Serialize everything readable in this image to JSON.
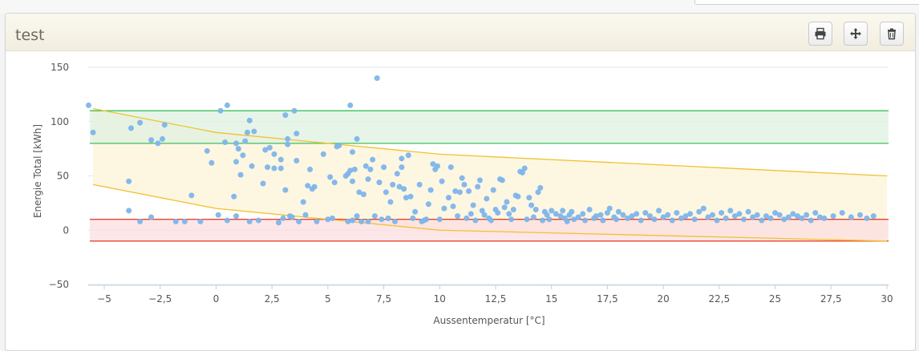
{
  "panel": {
    "title": "test"
  },
  "toolbar": {
    "print_icon": "print-icon",
    "move_icon": "move-icon",
    "delete_icon": "trash-icon"
  },
  "chart_data": {
    "type": "scatter",
    "title": "",
    "xlabel": "Aussentemperatur [°C]",
    "ylabel": "Energie Total [kWh]",
    "xlim": [
      -6,
      30
    ],
    "ylim": [
      -50,
      150
    ],
    "x_ticks": [
      -5,
      -2.5,
      0,
      2.5,
      5,
      7.5,
      10,
      12.5,
      15,
      17.5,
      20,
      22.5,
      25,
      27.5,
      30
    ],
    "x_tick_labels": [
      "−5",
      "−2,5",
      "0",
      "2,5",
      "5",
      "7,5",
      "10",
      "12,5",
      "15",
      "17,5",
      "20",
      "22,5",
      "25",
      "27,5",
      "30"
    ],
    "y_ticks": [
      -50,
      0,
      50,
      100,
      150
    ],
    "y_tick_labels": [
      "−50",
      "0",
      "50",
      "100",
      "150"
    ],
    "grid": "horizontal",
    "colors": {
      "points": "#7cb5ec",
      "green_band_line": "#3fbf5a",
      "green_band_fill": "#dff0e0",
      "red_band_line": "#e8432d",
      "red_band_fill": "#fbdde0",
      "yellow_band_line": "#f2c12e",
      "yellow_band_fill": "#fdf5dd"
    },
    "bands": [
      {
        "kind": "horizontal",
        "color": "green",
        "from": 80,
        "to": 110
      },
      {
        "kind": "horizontal",
        "color": "red",
        "from": -10,
        "to": 10
      },
      {
        "kind": "sloped",
        "color": "yellow",
        "upper": [
          [
            -5.5,
            112
          ],
          [
            0,
            90
          ],
          [
            10,
            70
          ],
          [
            30,
            50
          ]
        ],
        "lower": [
          [
            -5.5,
            42
          ],
          [
            0,
            20
          ],
          [
            10,
            0
          ],
          [
            30,
            -10
          ]
        ]
      }
    ],
    "series": [
      {
        "points": [
          [
            -5.7,
            115
          ],
          [
            -5.5,
            90
          ],
          [
            -3.9,
            45
          ],
          [
            -3.9,
            18
          ],
          [
            -3.8,
            94
          ],
          [
            -3.4,
            99
          ],
          [
            -3.4,
            8
          ],
          [
            -2.9,
            83
          ],
          [
            -2.9,
            12
          ],
          [
            -2.6,
            80
          ],
          [
            -2.4,
            84
          ],
          [
            -2.3,
            97
          ],
          [
            -1.8,
            8
          ],
          [
            -1.4,
            8
          ],
          [
            -1.1,
            32
          ],
          [
            -0.7,
            8
          ],
          [
            -0.4,
            73
          ],
          [
            -0.2,
            62
          ],
          [
            0.1,
            14
          ],
          [
            0.2,
            110
          ],
          [
            0.4,
            81
          ],
          [
            0.5,
            9
          ],
          [
            0.5,
            115
          ],
          [
            0.8,
            31
          ],
          [
            0.9,
            80
          ],
          [
            0.9,
            63
          ],
          [
            0.9,
            13
          ],
          [
            1,
            75
          ],
          [
            1.1,
            51
          ],
          [
            1.2,
            69
          ],
          [
            1.3,
            82
          ],
          [
            1.4,
            90
          ],
          [
            1.5,
            101
          ],
          [
            1.5,
            8
          ],
          [
            1.6,
            59
          ],
          [
            1.7,
            91
          ],
          [
            1.9,
            9
          ],
          [
            2.1,
            43
          ],
          [
            2.2,
            74
          ],
          [
            2.3,
            58
          ],
          [
            2.4,
            76
          ],
          [
            2.6,
            70
          ],
          [
            2.6,
            57
          ],
          [
            2.8,
            7
          ],
          [
            2.9,
            65
          ],
          [
            2.9,
            57
          ],
          [
            3,
            11
          ],
          [
            3.1,
            37
          ],
          [
            3.1,
            106
          ],
          [
            3.2,
            79
          ],
          [
            3.2,
            84
          ],
          [
            3.3,
            13
          ],
          [
            3.4,
            12
          ],
          [
            3.5,
            110
          ],
          [
            3.6,
            64
          ],
          [
            3.6,
            89
          ],
          [
            3.7,
            8
          ],
          [
            3.9,
            26
          ],
          [
            4,
            14
          ],
          [
            4.1,
            41
          ],
          [
            4.2,
            56
          ],
          [
            4.3,
            38
          ],
          [
            4.4,
            40
          ],
          [
            4.5,
            8
          ],
          [
            4.8,
            70
          ],
          [
            5,
            10
          ],
          [
            5.1,
            49
          ],
          [
            5.2,
            11
          ],
          [
            5.3,
            44
          ],
          [
            5.4,
            77
          ],
          [
            5.5,
            78
          ],
          [
            5.8,
            50
          ],
          [
            5.9,
            8
          ],
          [
            5.9,
            52
          ],
          [
            6,
            115
          ],
          [
            6,
            55
          ],
          [
            6.1,
            9
          ],
          [
            6.1,
            72
          ],
          [
            6.1,
            45
          ],
          [
            6.2,
            56
          ],
          [
            6.3,
            84
          ],
          [
            6.3,
            13
          ],
          [
            6.4,
            35
          ],
          [
            6.5,
            8
          ],
          [
            6.6,
            33
          ],
          [
            6.7,
            59
          ],
          [
            6.8,
            8
          ],
          [
            6.8,
            47
          ],
          [
            6.9,
            56
          ],
          [
            7,
            65
          ],
          [
            7.1,
            13
          ],
          [
            7.2,
            140
          ],
          [
            7.3,
            44
          ],
          [
            7.4,
            10
          ],
          [
            7.5,
            58
          ],
          [
            7.6,
            35
          ],
          [
            7.7,
            11
          ],
          [
            7.8,
            26
          ],
          [
            7.9,
            42
          ],
          [
            8,
            8
          ],
          [
            8.1,
            52
          ],
          [
            8.2,
            40
          ],
          [
            8.3,
            66
          ],
          [
            8.3,
            58
          ],
          [
            8.4,
            38
          ],
          [
            8.5,
            30
          ],
          [
            8.6,
            69
          ],
          [
            8.7,
            31
          ],
          [
            8.8,
            11
          ],
          [
            8.9,
            17
          ],
          [
            9.1,
            42
          ],
          [
            9.2,
            8
          ],
          [
            9.3,
            9
          ],
          [
            9.4,
            10
          ],
          [
            9.5,
            24
          ],
          [
            9.6,
            37
          ],
          [
            9.7,
            61
          ],
          [
            9.8,
            56
          ],
          [
            9.9,
            59
          ],
          [
            10,
            10
          ],
          [
            10.1,
            45
          ],
          [
            10.2,
            20
          ],
          [
            10.4,
            30
          ],
          [
            10.5,
            58
          ],
          [
            10.6,
            22
          ],
          [
            10.7,
            36
          ],
          [
            10.8,
            13
          ],
          [
            10.9,
            35
          ],
          [
            11,
            48
          ],
          [
            11.1,
            42
          ],
          [
            11.2,
            11
          ],
          [
            11.3,
            36
          ],
          [
            11.4,
            15
          ],
          [
            11.5,
            23
          ],
          [
            11.6,
            9
          ],
          [
            11.7,
            40
          ],
          [
            11.8,
            46
          ],
          [
            11.9,
            18
          ],
          [
            12,
            14
          ],
          [
            12.1,
            29
          ],
          [
            12.2,
            11
          ],
          [
            12.3,
            9
          ],
          [
            12.4,
            37
          ],
          [
            12.5,
            19
          ],
          [
            12.6,
            16
          ],
          [
            12.7,
            47
          ],
          [
            12.8,
            46
          ],
          [
            12.9,
            21
          ],
          [
            13,
            26
          ],
          [
            13.1,
            15
          ],
          [
            13.2,
            10
          ],
          [
            13.3,
            19
          ],
          [
            13.4,
            32
          ],
          [
            13.5,
            31
          ],
          [
            13.6,
            54
          ],
          [
            13.7,
            53
          ],
          [
            13.8,
            57
          ],
          [
            13.9,
            10
          ],
          [
            14,
            30
          ],
          [
            14.1,
            23
          ],
          [
            14.2,
            12
          ],
          [
            14.3,
            19
          ],
          [
            14.4,
            35
          ],
          [
            14.5,
            39
          ],
          [
            14.6,
            9
          ],
          [
            14.7,
            17
          ],
          [
            14.8,
            14
          ],
          [
            14.9,
            10
          ],
          [
            15,
            18
          ],
          [
            15.2,
            15
          ],
          [
            15.4,
            13
          ],
          [
            15.5,
            18
          ],
          [
            15.6,
            11
          ],
          [
            15.7,
            8
          ],
          [
            15.8,
            14
          ],
          [
            15.9,
            17
          ],
          [
            16,
            10
          ],
          [
            16.2,
            12
          ],
          [
            16.4,
            15
          ],
          [
            16.5,
            9
          ],
          [
            16.7,
            19
          ],
          [
            16.9,
            11
          ],
          [
            17,
            13
          ],
          [
            17.2,
            14
          ],
          [
            17.3,
            9
          ],
          [
            17.5,
            16
          ],
          [
            17.6,
            20
          ],
          [
            17.8,
            12
          ],
          [
            17.9,
            10
          ],
          [
            18,
            17
          ],
          [
            18.2,
            14
          ],
          [
            18.4,
            11
          ],
          [
            18.6,
            13
          ],
          [
            18.8,
            15
          ],
          [
            19,
            9
          ],
          [
            19.2,
            16
          ],
          [
            19.4,
            13
          ],
          [
            19.6,
            10
          ],
          [
            19.8,
            18
          ],
          [
            20,
            12
          ],
          [
            20.2,
            14
          ],
          [
            20.4,
            9
          ],
          [
            20.6,
            16
          ],
          [
            20.8,
            11
          ],
          [
            21,
            13
          ],
          [
            21.2,
            15
          ],
          [
            21.4,
            10
          ],
          [
            21.6,
            17
          ],
          [
            21.8,
            20
          ],
          [
            22,
            12
          ],
          [
            22.2,
            14
          ],
          [
            22.4,
            9
          ],
          [
            22.6,
            16
          ],
          [
            22.8,
            11
          ],
          [
            23,
            18
          ],
          [
            23.2,
            13
          ],
          [
            23.4,
            15
          ],
          [
            23.6,
            10
          ],
          [
            23.8,
            17
          ],
          [
            24,
            12
          ],
          [
            24.2,
            14
          ],
          [
            24.4,
            9
          ],
          [
            24.6,
            13
          ],
          [
            24.8,
            11
          ],
          [
            25,
            16
          ],
          [
            25.2,
            14
          ],
          [
            25.4,
            10
          ],
          [
            25.6,
            12
          ],
          [
            25.8,
            15
          ],
          [
            26,
            13
          ],
          [
            26.2,
            11
          ],
          [
            26.4,
            14
          ],
          [
            26.6,
            9
          ],
          [
            26.8,
            16
          ],
          [
            27,
            12
          ],
          [
            27.2,
            11
          ],
          [
            27.6,
            13
          ],
          [
            28,
            16
          ],
          [
            28.4,
            12
          ],
          [
            28.8,
            14
          ],
          [
            29.1,
            11
          ],
          [
            29.4,
            13
          ]
        ]
      }
    ]
  }
}
